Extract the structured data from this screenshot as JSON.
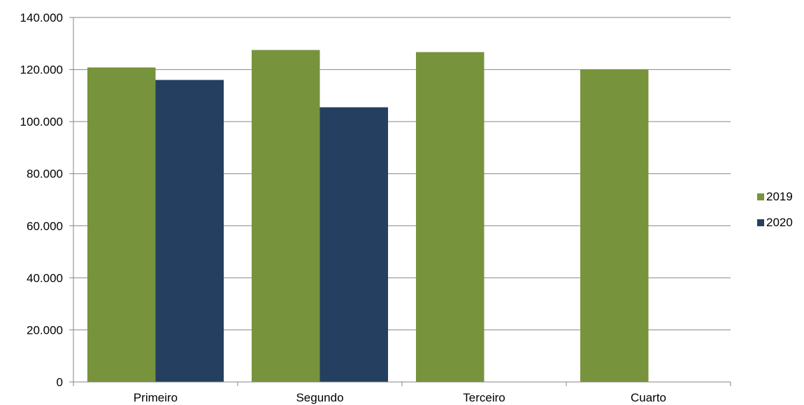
{
  "chart_data": {
    "type": "bar",
    "categories": [
      "Primeiro",
      "Segundo",
      "Terceiro",
      "Cuarto"
    ],
    "series": [
      {
        "name": "2019",
        "color": "#77933C",
        "values": [
          120800,
          127500,
          126700,
          119900
        ]
      },
      {
        "name": "2020",
        "color": "#243F60",
        "values": [
          116000,
          105500,
          null,
          null
        ]
      }
    ],
    "ylim": [
      0,
      140000
    ],
    "yticks": [
      0,
      20000,
      40000,
      60000,
      80000,
      100000,
      120000,
      140000
    ],
    "ytick_labels": [
      "0",
      "20.000",
      "40.000",
      "60.000",
      "80.000",
      "100.000",
      "120.000",
      "140.000"
    ],
    "grid": true,
    "legend_position": "right",
    "title": "",
    "xlabel": "",
    "ylabel": ""
  }
}
